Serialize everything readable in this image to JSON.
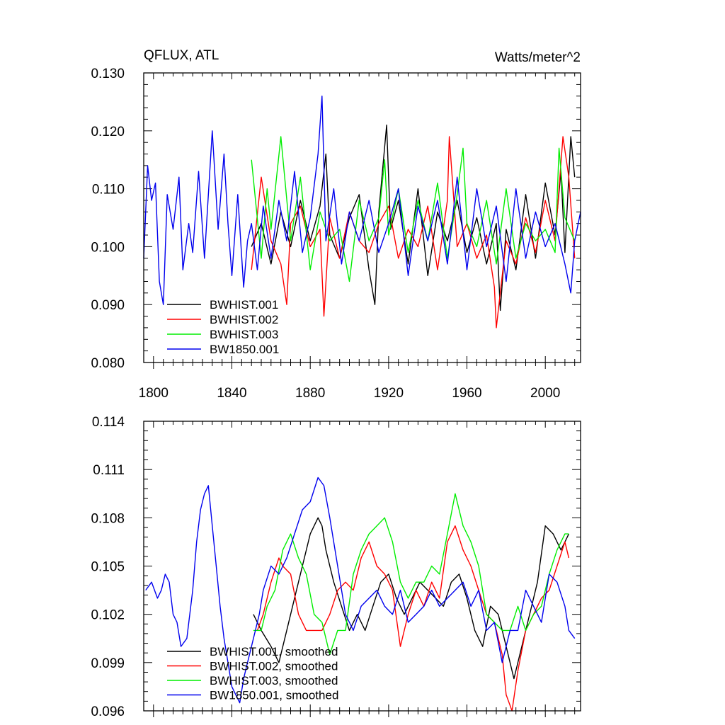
{
  "chart_data": [
    {
      "type": "line",
      "title_left": "QFLUX, ATL",
      "title_right": "Watts/meter^2",
      "xlim": [
        1795,
        2018
      ],
      "ylim": [
        0.08,
        0.13
      ],
      "xticks": [
        1800,
        1840,
        1880,
        1920,
        1960,
        2000
      ],
      "xtick_labels": [
        "1800",
        "1840",
        "1880",
        "1920",
        "1960",
        "2000"
      ],
      "yticks": [
        0.08,
        0.09,
        0.1,
        0.11,
        0.12,
        0.13
      ],
      "ytick_labels": [
        "0.080",
        "0.090",
        "0.100",
        "0.110",
        "0.120",
        "0.130"
      ],
      "legend_position": "bottom-left",
      "series": [
        {
          "name": "BWHIST.001",
          "color": "#000000",
          "x": [
            1850,
            1855,
            1860,
            1865,
            1870,
            1875,
            1880,
            1885,
            1888,
            1890,
            1895,
            1900,
            1905,
            1910,
            1913,
            1915,
            1919,
            1921,
            1925,
            1930,
            1935,
            1940,
            1945,
            1950,
            1955,
            1960,
            1965,
            1970,
            1975,
            1977,
            1980,
            1985,
            1990,
            1995,
            2000,
            2005,
            2008,
            2010,
            2013,
            2015
          ],
          "values": [
            0.1,
            0.104,
            0.097,
            0.106,
            0.1,
            0.108,
            0.101,
            0.107,
            0.116,
            0.102,
            0.098,
            0.105,
            0.109,
            0.096,
            0.09,
            0.106,
            0.121,
            0.103,
            0.108,
            0.097,
            0.11,
            0.095,
            0.106,
            0.101,
            0.108,
            0.099,
            0.105,
            0.097,
            0.104,
            0.089,
            0.103,
            0.096,
            0.109,
            0.098,
            0.111,
            0.102,
            0.113,
            0.099,
            0.119,
            0.112
          ]
        },
        {
          "name": "BWHIST.002",
          "color": "#ff0000",
          "x": [
            1850,
            1855,
            1860,
            1865,
            1868,
            1870,
            1875,
            1880,
            1885,
            1887,
            1890,
            1895,
            1900,
            1905,
            1910,
            1915,
            1920,
            1925,
            1930,
            1935,
            1940,
            1945,
            1950,
            1951,
            1955,
            1960,
            1965,
            1970,
            1974,
            1975,
            1980,
            1985,
            1990,
            1995,
            2000,
            2005,
            2009,
            2012,
            2015
          ],
          "values": [
            0.096,
            0.112,
            0.101,
            0.097,
            0.09,
            0.104,
            0.107,
            0.1,
            0.103,
            0.088,
            0.105,
            0.098,
            0.106,
            0.101,
            0.099,
            0.104,
            0.107,
            0.098,
            0.103,
            0.1,
            0.107,
            0.096,
            0.108,
            0.119,
            0.1,
            0.104,
            0.098,
            0.102,
            0.093,
            0.086,
            0.101,
            0.097,
            0.105,
            0.099,
            0.108,
            0.101,
            0.119,
            0.112,
            0.098
          ]
        },
        {
          "name": "BWHIST.003",
          "color": "#00ee00",
          "x": [
            1850,
            1855,
            1858,
            1860,
            1865,
            1870,
            1875,
            1880,
            1885,
            1890,
            1895,
            1900,
            1905,
            1910,
            1915,
            1918,
            1920,
            1925,
            1930,
            1935,
            1940,
            1945,
            1950,
            1955,
            1958,
            1960,
            1965,
            1970,
            1975,
            1980,
            1985,
            1990,
            1995,
            2000,
            2005,
            2007,
            2010,
            2015
          ],
          "values": [
            0.115,
            0.098,
            0.11,
            0.103,
            0.119,
            0.101,
            0.112,
            0.096,
            0.106,
            0.101,
            0.103,
            0.094,
            0.108,
            0.101,
            0.105,
            0.115,
            0.102,
            0.11,
            0.099,
            0.108,
            0.101,
            0.111,
            0.098,
            0.109,
            0.117,
            0.104,
            0.1,
            0.108,
            0.097,
            0.11,
            0.098,
            0.104,
            0.101,
            0.103,
            0.099,
            0.117,
            0.105,
            0.101
          ]
        },
        {
          "name": "BW1850.001",
          "color": "#0000ee",
          "x": [
            1795,
            1797,
            1799,
            1801,
            1803,
            1805,
            1807,
            1810,
            1813,
            1815,
            1818,
            1820,
            1823,
            1826,
            1828,
            1830,
            1833,
            1836,
            1838,
            1840,
            1843,
            1846,
            1848,
            1850,
            1853,
            1856,
            1860,
            1864,
            1868,
            1872,
            1876,
            1880,
            1884,
            1886,
            1888,
            1892,
            1896,
            1900,
            1905,
            1910,
            1915,
            1920,
            1925,
            1930,
            1935,
            1940,
            1945,
            1950,
            1955,
            1960,
            1965,
            1970,
            1975,
            1980,
            1985,
            1990,
            1995,
            2000,
            2005,
            2010,
            2013,
            2015,
            2018
          ],
          "values": [
            0.098,
            0.114,
            0.108,
            0.111,
            0.094,
            0.09,
            0.109,
            0.103,
            0.112,
            0.096,
            0.104,
            0.099,
            0.113,
            0.098,
            0.109,
            0.12,
            0.103,
            0.116,
            0.104,
            0.095,
            0.109,
            0.093,
            0.101,
            0.104,
            0.096,
            0.107,
            0.098,
            0.108,
            0.101,
            0.113,
            0.099,
            0.105,
            0.116,
            0.126,
            0.101,
            0.11,
            0.097,
            0.106,
            0.101,
            0.108,
            0.099,
            0.104,
            0.11,
            0.095,
            0.107,
            0.101,
            0.108,
            0.097,
            0.112,
            0.096,
            0.11,
            0.1,
            0.107,
            0.094,
            0.11,
            0.098,
            0.106,
            0.1,
            0.104,
            0.097,
            0.092,
            0.101,
            0.106
          ]
        }
      ]
    },
    {
      "type": "line",
      "title_left": "",
      "title_right": "",
      "xlim": [
        1795,
        2018
      ],
      "ylim": [
        0.096,
        0.114
      ],
      "xticks": [
        1800,
        1840,
        1880,
        1920,
        1960,
        2000
      ],
      "xtick_labels": [],
      "yticks": [
        0.096,
        0.099,
        0.102,
        0.105,
        0.108,
        0.111,
        0.114
      ],
      "ytick_labels": [
        "0.096",
        "0.099",
        "0.102",
        "0.105",
        "0.108",
        "0.111",
        "0.114"
      ],
      "legend_position": "bottom-left",
      "series": [
        {
          "name": "BWHIST.001, smoothed",
          "color": "#000000",
          "x": [
            1851,
            1855,
            1860,
            1864,
            1868,
            1872,
            1876,
            1880,
            1884,
            1886,
            1888,
            1892,
            1896,
            1900,
            1904,
            1908,
            1912,
            1916,
            1920,
            1924,
            1928,
            1932,
            1936,
            1940,
            1944,
            1948,
            1952,
            1956,
            1960,
            1964,
            1968,
            1972,
            1976,
            1980,
            1984,
            1988,
            1992,
            1996,
            2000,
            2004,
            2008,
            2010,
            2012
          ],
          "values": [
            0.102,
            0.101,
            0.1,
            0.099,
            0.101,
            0.103,
            0.105,
            0.107,
            0.108,
            0.1075,
            0.106,
            0.104,
            0.1025,
            0.101,
            0.102,
            0.101,
            0.1025,
            0.104,
            0.1045,
            0.103,
            0.102,
            0.103,
            0.104,
            0.1035,
            0.103,
            0.1025,
            0.104,
            0.1045,
            0.103,
            0.101,
            0.1,
            0.1025,
            0.102,
            0.1,
            0.098,
            0.1,
            0.102,
            0.104,
            0.1075,
            0.107,
            0.106,
            0.1065,
            0.107
          ]
        },
        {
          "name": "BWHIST.002, smoothed",
          "color": "#ff0000",
          "x": [
            1853,
            1856,
            1860,
            1864,
            1866,
            1870,
            1874,
            1878,
            1882,
            1886,
            1890,
            1894,
            1898,
            1902,
            1906,
            1910,
            1914,
            1918,
            1922,
            1926,
            1930,
            1934,
            1938,
            1942,
            1946,
            1950,
            1954,
            1958,
            1962,
            1966,
            1970,
            1974,
            1978,
            1980,
            1983,
            1986,
            1990,
            1994,
            1998,
            2002,
            2006,
            2010,
            2012
          ],
          "values": [
            0.101,
            0.102,
            0.104,
            0.1055,
            0.105,
            0.1045,
            0.102,
            0.101,
            0.101,
            0.101,
            0.102,
            0.1035,
            0.104,
            0.1035,
            0.1055,
            0.1065,
            0.105,
            0.1045,
            0.1035,
            0.1,
            0.102,
            0.1035,
            0.1025,
            0.104,
            0.103,
            0.1065,
            0.1075,
            0.106,
            0.105,
            0.1035,
            0.102,
            0.1015,
            0.0995,
            0.097,
            0.096,
            0.0985,
            0.101,
            0.102,
            0.103,
            0.1035,
            0.105,
            0.1065,
            0.1055
          ]
        },
        {
          "name": "BWHIST.003, smoothed",
          "color": "#00ee00",
          "x": [
            1851,
            1855,
            1858,
            1862,
            1866,
            1870,
            1874,
            1878,
            1882,
            1886,
            1890,
            1894,
            1898,
            1902,
            1906,
            1910,
            1914,
            1918,
            1922,
            1926,
            1930,
            1934,
            1938,
            1942,
            1946,
            1950,
            1954,
            1958,
            1962,
            1966,
            1970,
            1974,
            1978,
            1982,
            1986,
            1990,
            1994,
            1998,
            2002,
            2006,
            2010,
            2012
          ],
          "values": [
            0.101,
            0.101,
            0.1025,
            0.1035,
            0.106,
            0.107,
            0.1055,
            0.1045,
            0.102,
            0.1015,
            0.0995,
            0.101,
            0.101,
            0.1045,
            0.106,
            0.107,
            0.1075,
            0.108,
            0.1065,
            0.104,
            0.103,
            0.104,
            0.104,
            0.105,
            0.1045,
            0.107,
            0.1095,
            0.1075,
            0.1065,
            0.105,
            0.102,
            0.1015,
            0.101,
            0.101,
            0.1025,
            0.101,
            0.102,
            0.1025,
            0.1045,
            0.106,
            0.107,
            0.107
          ]
        },
        {
          "name": "BW1850.001, smoothed",
          "color": "#0000ee",
          "x": [
            1796,
            1799,
            1802,
            1804,
            1806,
            1808,
            1810,
            1812,
            1814,
            1817,
            1820,
            1822,
            1824,
            1826,
            1828,
            1830,
            1832,
            1834,
            1836,
            1838,
            1840,
            1842,
            1844,
            1846,
            1848,
            1850,
            1852,
            1854,
            1856,
            1860,
            1864,
            1868,
            1872,
            1876,
            1880,
            1884,
            1887,
            1890,
            1894,
            1898,
            1902,
            1906,
            1910,
            1914,
            1918,
            1922,
            1926,
            1930,
            1934,
            1938,
            1942,
            1946,
            1950,
            1954,
            1958,
            1962,
            1966,
            1970,
            1974,
            1978,
            1982,
            1986,
            1990,
            1994,
            1998,
            2002,
            2006,
            2010,
            2012,
            2015
          ],
          "values": [
            0.1035,
            0.104,
            0.103,
            0.1035,
            0.1045,
            0.104,
            0.102,
            0.1015,
            0.1,
            0.1005,
            0.1035,
            0.1065,
            0.1085,
            0.1095,
            0.11,
            0.1075,
            0.105,
            0.1025,
            0.1005,
            0.099,
            0.0975,
            0.097,
            0.0965,
            0.098,
            0.099,
            0.1,
            0.101,
            0.102,
            0.1035,
            0.105,
            0.1045,
            0.1055,
            0.107,
            0.1085,
            0.109,
            0.1105,
            0.11,
            0.108,
            0.105,
            0.102,
            0.101,
            0.1025,
            0.103,
            0.1035,
            0.1025,
            0.102,
            0.1035,
            0.1015,
            0.102,
            0.1025,
            0.1035,
            0.1025,
            0.103,
            0.1035,
            0.104,
            0.1025,
            0.1035,
            0.101,
            0.1015,
            0.099,
            0.101,
            0.101,
            0.1035,
            0.1025,
            0.1015,
            0.1045,
            0.104,
            0.1025,
            0.101,
            0.1005
          ]
        }
      ]
    }
  ]
}
